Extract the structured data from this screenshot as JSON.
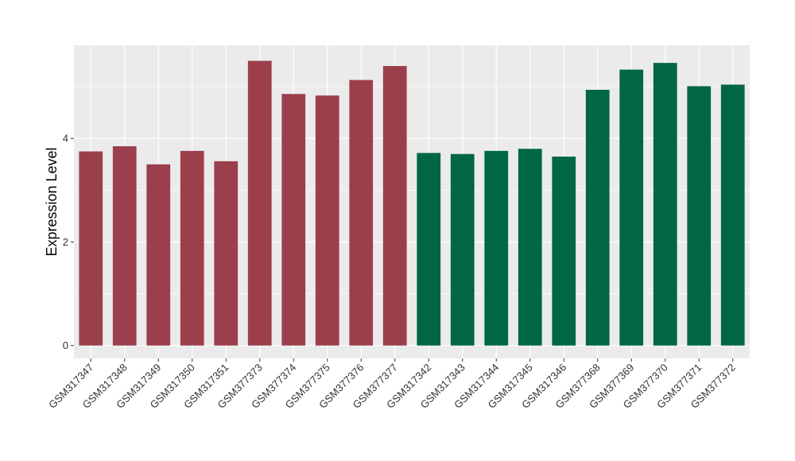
{
  "chart_data": {
    "type": "bar",
    "title": "",
    "xlabel": "",
    "ylabel": "Expression Level",
    "ylim": [
      -0.25,
      5.8
    ],
    "yticks": [
      0,
      2,
      4
    ],
    "grid": true,
    "legend": "none",
    "categories": [
      "GSM317347",
      "GSM317348",
      "GSM317349",
      "GSM317350",
      "GSM317351",
      "GSM377373",
      "GSM377374",
      "GSM377375",
      "GSM377376",
      "GSM377377",
      "GSM317342",
      "GSM317343",
      "GSM317344",
      "GSM317345",
      "GSM317346",
      "GSM377368",
      "GSM377369",
      "GSM377370",
      "GSM377371",
      "GSM377372"
    ],
    "values": [
      3.75,
      3.85,
      3.5,
      3.76,
      3.56,
      5.5,
      4.86,
      4.83,
      5.13,
      5.4,
      3.72,
      3.7,
      3.76,
      3.8,
      3.65,
      4.94,
      5.33,
      5.46,
      5.01,
      5.04
    ],
    "bar_colors": [
      "#9b3f4c",
      "#9b3f4c",
      "#9b3f4c",
      "#9b3f4c",
      "#9b3f4c",
      "#9b3f4c",
      "#9b3f4c",
      "#9b3f4c",
      "#9b3f4c",
      "#9b3f4c",
      "#006644",
      "#006644",
      "#006644",
      "#006644",
      "#006644",
      "#006644",
      "#006644",
      "#006644",
      "#006644",
      "#006644"
    ],
    "panel_background": "#ebebeb",
    "gridline_color": "#ffffff"
  }
}
